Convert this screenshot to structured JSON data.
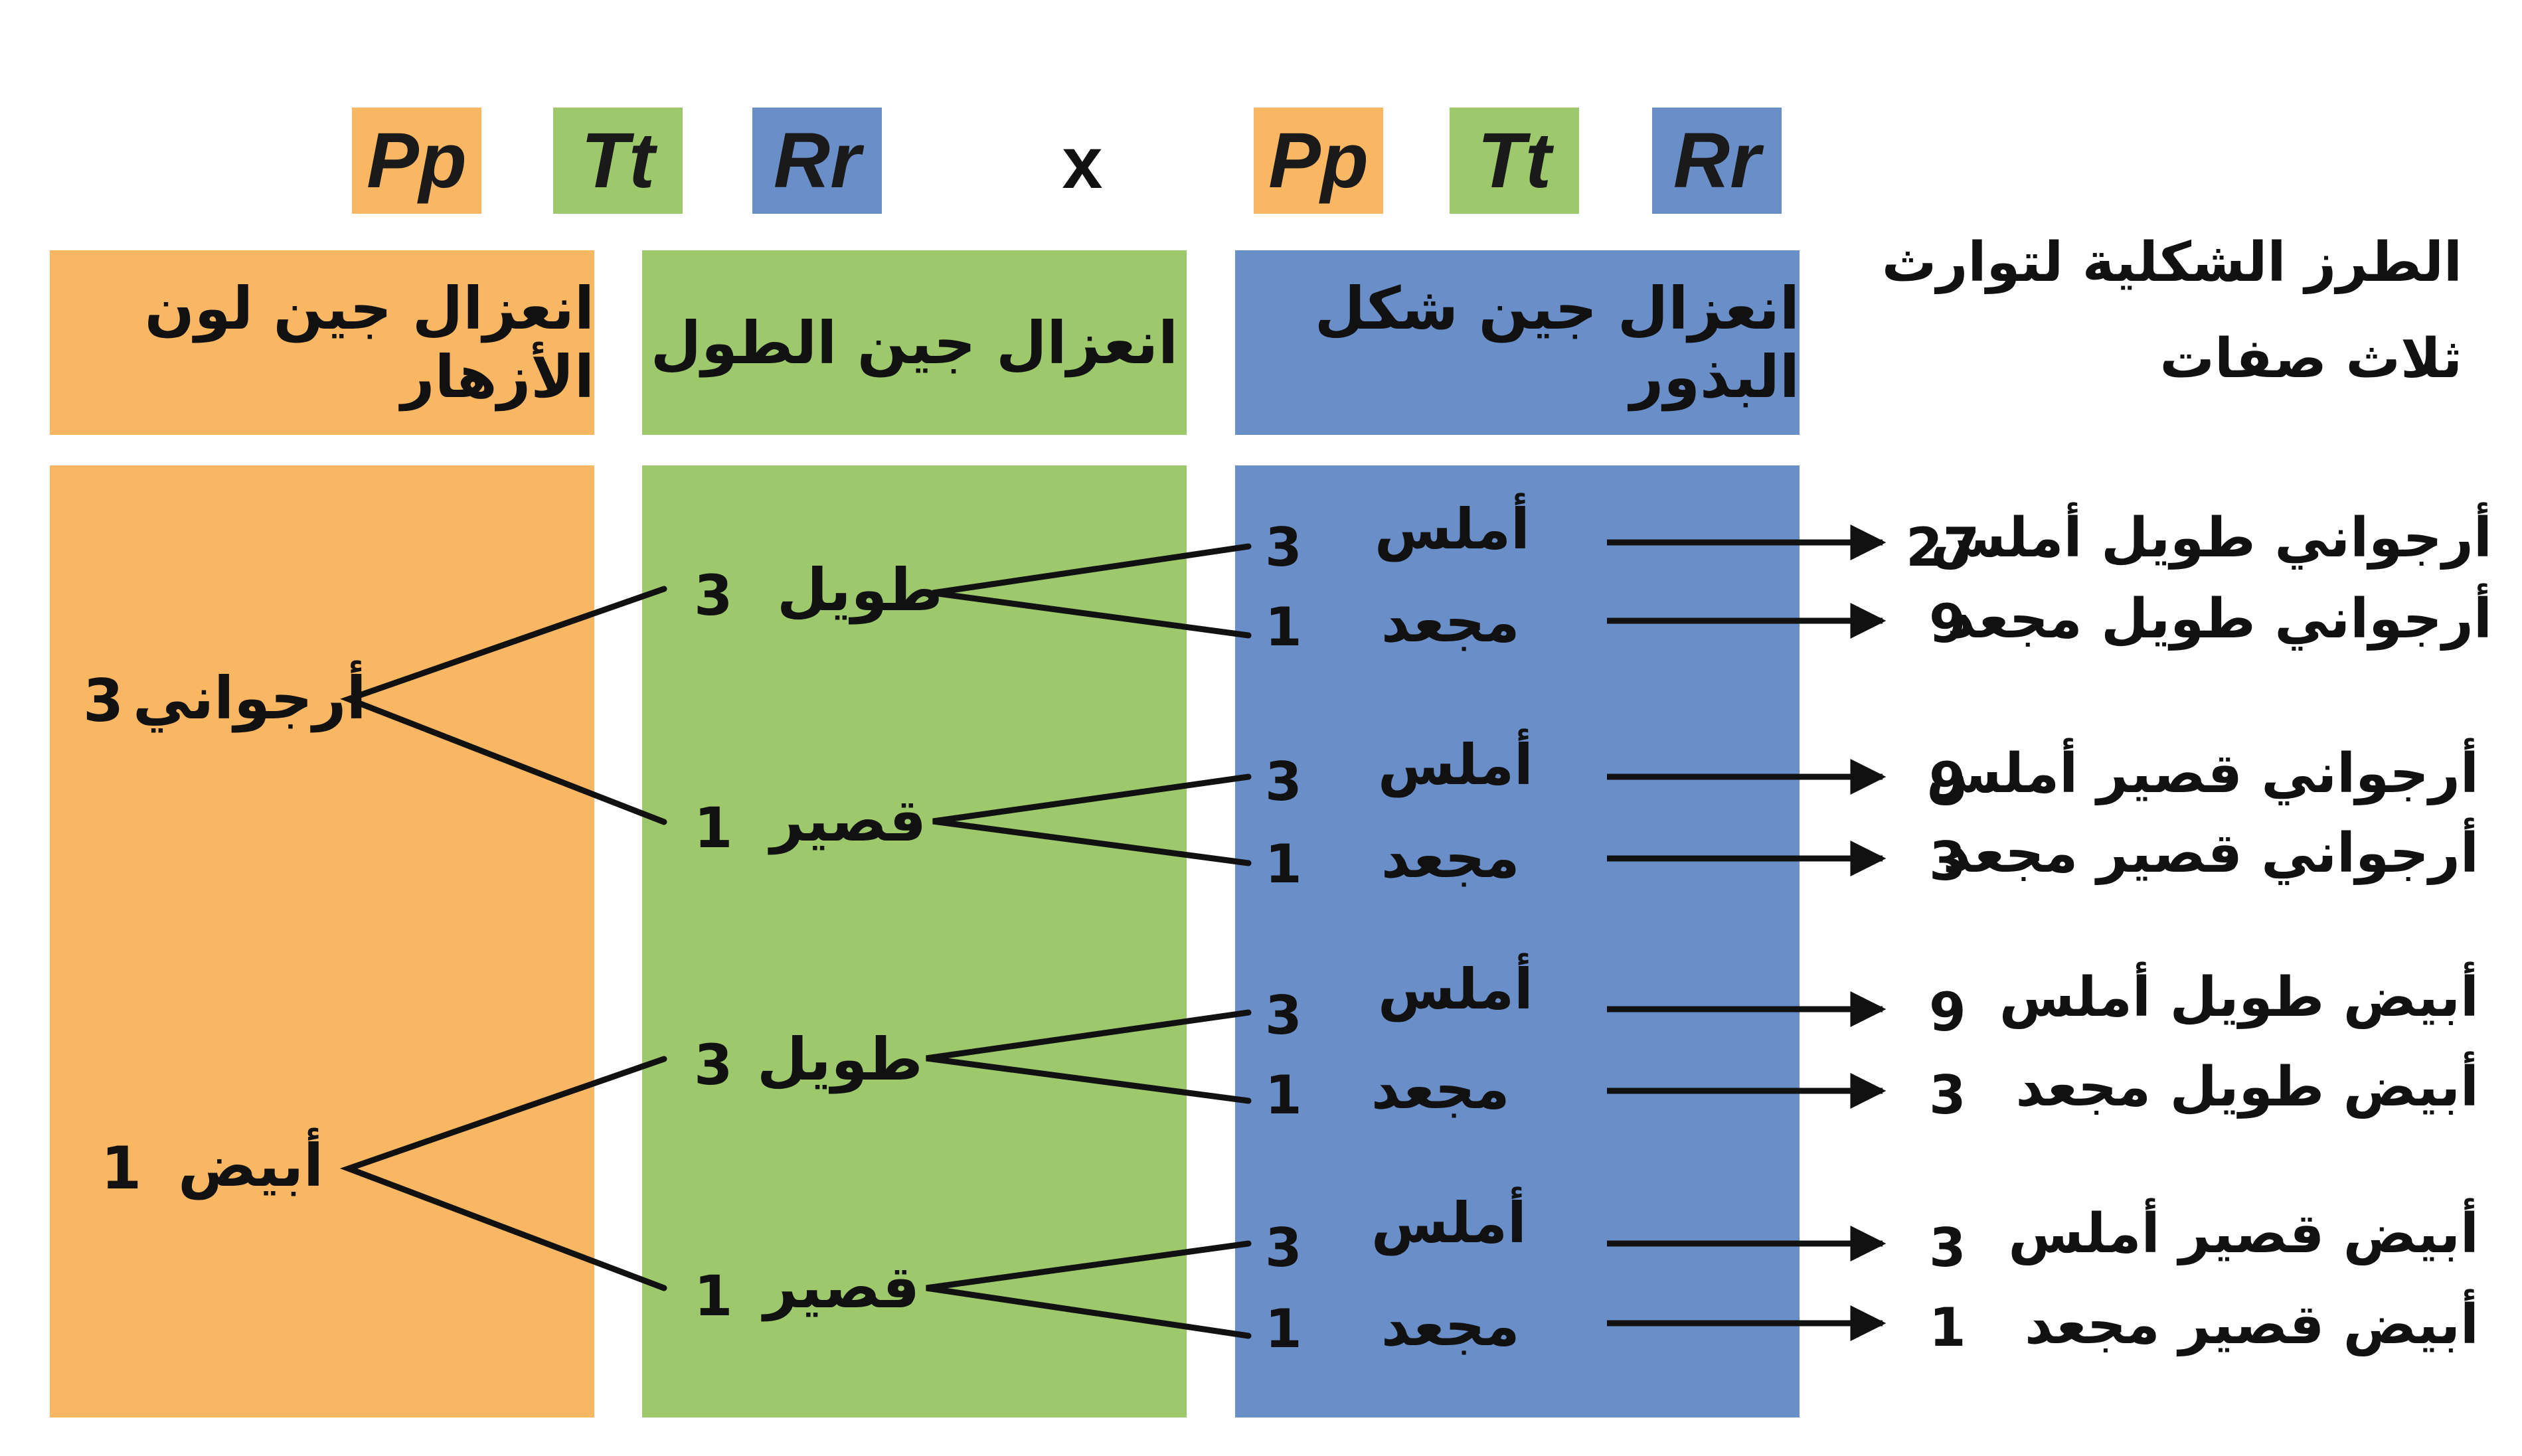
{
  "colors": {
    "orange": "#f9b763",
    "green": "#9dc86b",
    "blue": "#6a8ec8",
    "ink": "#111111"
  },
  "cross": {
    "left": {
      "p": "Pp",
      "t": "Tt",
      "r": "Rr"
    },
    "operator": "x",
    "right": {
      "p": "Pp",
      "t": "Tt",
      "r": "Rr"
    }
  },
  "headers": {
    "color": "انعزال جين لون الأزهار",
    "height": "انعزال جين الطول",
    "shape": "انعزال جين شكل البذور"
  },
  "phenotypes_title": {
    "line1": "الطرز الشكلية لتوارث",
    "line2": "ثلاث صفات"
  },
  "colors_split": [
    {
      "label": "أرجواني",
      "ratio": "3"
    },
    {
      "label": "أبيض",
      "ratio": "1"
    }
  ],
  "heights_split": [
    {
      "label": "طويل",
      "ratio": "3"
    },
    {
      "label": "قصير",
      "ratio": "1"
    },
    {
      "label": "طويل",
      "ratio": "3"
    },
    {
      "label": "قصير",
      "ratio": "1"
    }
  ],
  "shapes_split": [
    {
      "label": "أملس",
      "ratio": "3"
    },
    {
      "label": "مجعد",
      "ratio": "1"
    },
    {
      "label": "أملس",
      "ratio": "3"
    },
    {
      "label": "مجعد",
      "ratio": "1"
    },
    {
      "label": "أملس",
      "ratio": "3"
    },
    {
      "label": "مجعد",
      "ratio": "1"
    },
    {
      "label": "أملس",
      "ratio": "3"
    },
    {
      "label": "مجعد",
      "ratio": "1"
    }
  ],
  "results": [
    {
      "count": "27",
      "text": "أرجواني  طويل  أملس"
    },
    {
      "count": "9",
      "text": "أرجواني  طويل  مجعد"
    },
    {
      "count": "9",
      "text": "أرجواني  قصير  أملس"
    },
    {
      "count": "3",
      "text": "أرجواني  قصير  مجعد"
    },
    {
      "count": "9",
      "text": "أبيض  طويل  أملس"
    },
    {
      "count": "3",
      "text": "أبيض  طويل  مجعد"
    },
    {
      "count": "3",
      "text": "أبيض  قصير  أملس"
    },
    {
      "count": "1",
      "text": "أبيض  قصير  مجعد"
    }
  ]
}
